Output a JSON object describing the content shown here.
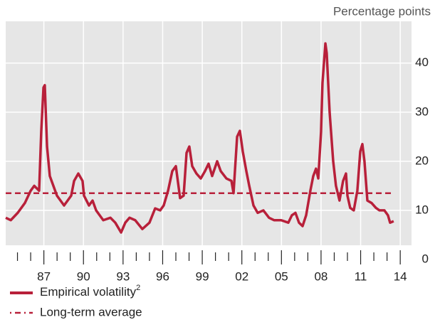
{
  "chart_data": {
    "type": "line",
    "unit_label": "Percentage points",
    "series": [
      {
        "name": "Empirical volatility",
        "footnote_marker": "2",
        "color": "#b8203a",
        "x": [
          1984.11,
          1984.49,
          1985.02,
          1985.56,
          1986.0,
          1986.27,
          1986.64,
          1986.8,
          1986.97,
          1987.07,
          1987.24,
          1987.45,
          1987.72,
          1987.99,
          1988.26,
          1988.53,
          1988.8,
          1989.07,
          1989.29,
          1989.61,
          1989.93,
          1990.04,
          1990.42,
          1990.69,
          1990.96,
          1991.23,
          1991.5,
          1992.04,
          1992.41,
          1992.85,
          1993.17,
          1993.49,
          1993.92,
          1994.46,
          1995.0,
          1995.43,
          1995.81,
          1996.08,
          1996.41,
          1996.73,
          1997.0,
          1997.32,
          1997.59,
          1997.81,
          1998.02,
          1998.24,
          1998.56,
          1998.89,
          1999.21,
          1999.48,
          1999.75,
          2000.13,
          2000.4,
          2000.83,
          2001.21,
          2001.37,
          2001.64,
          2001.85,
          2002.07,
          2002.34,
          2002.56,
          2002.88,
          2003.2,
          2003.63,
          2004.06,
          2004.44,
          2004.98,
          2005.52,
          2005.79,
          2006.06,
          2006.33,
          2006.6,
          2006.87,
          2007.19,
          2007.41,
          2007.62,
          2007.79,
          2008.0,
          2008.11,
          2008.33,
          2008.43,
          2008.65,
          2008.92,
          2009.13,
          2009.4,
          2009.67,
          2009.89,
          2010.0,
          2010.21,
          2010.48,
          2010.75,
          2010.97,
          2011.13,
          2011.29,
          2011.51,
          2011.83,
          2012.16,
          2012.43,
          2012.8,
          2013.07,
          2013.23,
          2013.5
        ],
        "values": [
          8.5,
          8,
          9.5,
          11.5,
          14,
          15,
          14,
          26,
          35,
          35.5,
          23,
          17,
          15,
          13,
          12,
          11,
          12,
          13,
          16,
          17.5,
          16,
          13,
          11,
          12,
          10,
          9,
          8,
          8.5,
          7.5,
          5.5,
          7.5,
          8.5,
          8,
          6.2,
          7.5,
          10.4,
          10,
          11,
          14,
          18,
          19,
          12.5,
          13,
          21.7,
          23,
          19,
          17.5,
          16.5,
          18,
          19.5,
          17,
          20,
          18,
          16.5,
          16,
          13.5,
          25,
          26.2,
          22,
          18,
          15,
          11,
          9.5,
          10,
          8.5,
          8,
          8,
          7.5,
          9,
          9.5,
          7.5,
          6.8,
          9,
          14,
          17,
          18.5,
          16.5,
          26,
          36,
          44,
          42,
          30,
          20,
          15,
          12,
          16,
          17.5,
          13,
          10.5,
          10,
          14,
          22,
          23.5,
          20,
          12,
          11.5,
          10.5,
          10,
          10,
          9,
          7.5,
          7.8
        ]
      }
    ],
    "reference_line": {
      "name": "Long-term average",
      "value": 13.5,
      "color": "#b8203a"
    },
    "xlim": [
      1984,
      2014.8
    ],
    "xticks": [
      {
        "value": 1987,
        "label": "87"
      },
      {
        "value": 1990,
        "label": "90"
      },
      {
        "value": 1993,
        "label": "93"
      },
      {
        "value": 1996,
        "label": "96"
      },
      {
        "value": 1999,
        "label": "99"
      },
      {
        "value": 2002,
        "label": "02"
      },
      {
        "value": 2005,
        "label": "05"
      },
      {
        "value": 2008,
        "label": "08"
      },
      {
        "value": 2011,
        "label": "11"
      },
      {
        "value": 2014,
        "label": "14"
      }
    ],
    "xticks_minor": [
      1985,
      1986,
      1988,
      1989,
      1991,
      1992,
      1994,
      1995,
      1997,
      1998,
      2000,
      2001,
      2003,
      2004,
      2006,
      2007,
      2009,
      2010,
      2012,
      2013
    ],
    "ylim": [
      0,
      48.5
    ],
    "yticks": [
      0,
      10,
      20,
      30,
      40
    ],
    "grid": true
  }
}
